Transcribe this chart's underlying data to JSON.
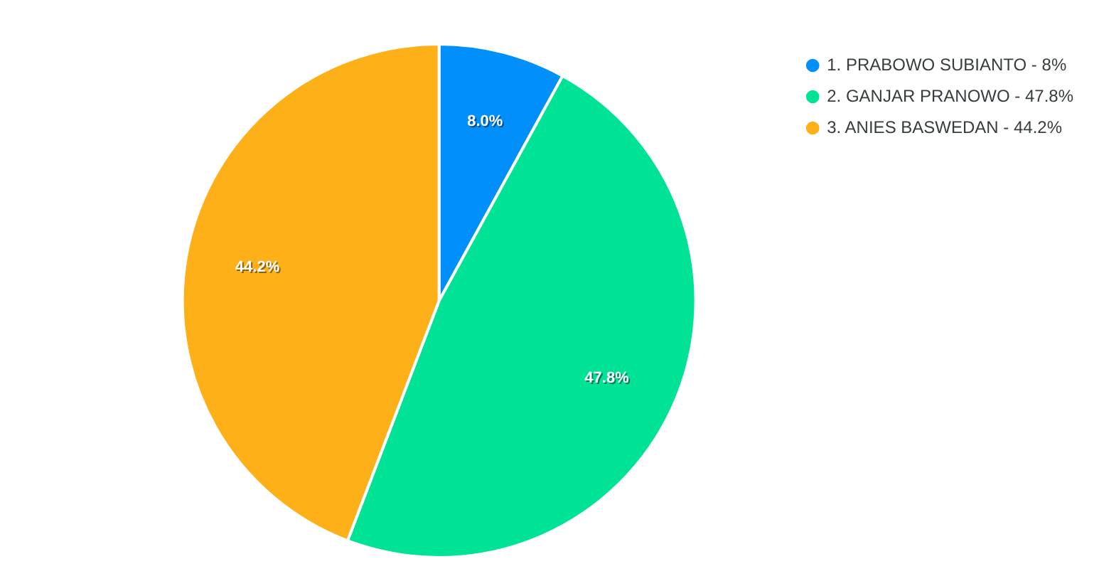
{
  "chart_data": {
    "type": "pie",
    "categories": [
      "1. PRABOWO SUBIANTO - 8%",
      "2. GANJAR PRANOWO - 47.8%",
      "3. ANIES BASWEDAN - 44.2%"
    ],
    "values": [
      8,
      47.8,
      44.2
    ],
    "colors": [
      "#008ffb",
      "#00e396",
      "#feb019"
    ],
    "value_labels": [
      "8.0%",
      "47.8%",
      "44.2%"
    ],
    "legend": "top right"
  }
}
